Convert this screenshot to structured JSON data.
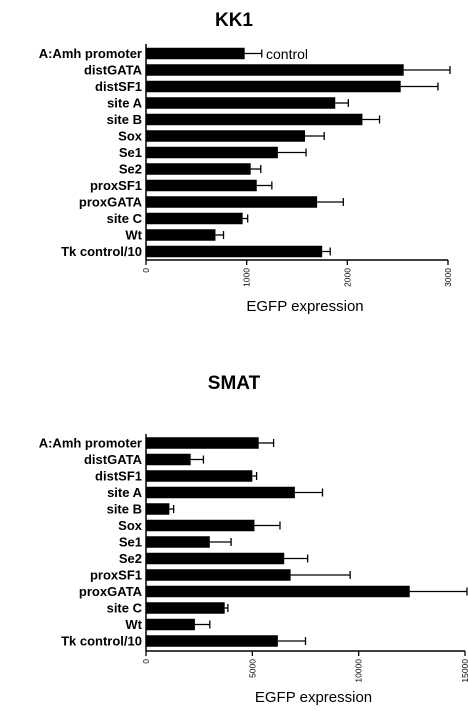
{
  "chart_data": [
    {
      "type": "bar",
      "orientation": "horizontal",
      "title": "KK1",
      "xlabel": "EGFP expression",
      "ylabel": "",
      "xlim": [
        0,
        3000
      ],
      "xticks": [
        0,
        1000,
        2000,
        3000
      ],
      "grid": false,
      "annotation": "control",
      "categories": [
        "A:Amh promoter",
        "distGATA",
        "distSF1",
        "site A",
        "site B",
        "Sox",
        "Se1",
        "Se2",
        "proxSF1",
        "proxGATA",
        "site C",
        "Wt",
        "Tk control/10"
      ],
      "values": [
        980,
        2560,
        2530,
        1880,
        2150,
        1580,
        1310,
        1040,
        1100,
        1700,
        960,
        690,
        1750
      ],
      "errors": [
        170,
        540,
        370,
        130,
        170,
        190,
        280,
        100,
        150,
        260,
        50,
        80,
        80
      ]
    },
    {
      "type": "bar",
      "orientation": "horizontal",
      "title": "SMAT",
      "xlabel": "EGFP expression",
      "ylabel": "",
      "xlim": [
        0,
        15000
      ],
      "xticks": [
        0,
        5000,
        10000,
        15000
      ],
      "grid": false,
      "categories": [
        "A:Amh promoter",
        "distGATA",
        "distSF1",
        "site A",
        "site B",
        "Sox",
        "Se1",
        "Se2",
        "proxSF1",
        "proxGATA",
        "site C",
        "Wt",
        "Tk control/10"
      ],
      "values": [
        5300,
        2100,
        5000,
        7000,
        1100,
        5100,
        3000,
        6500,
        6800,
        12400,
        3700,
        2300,
        6200
      ],
      "errors": [
        700,
        600,
        200,
        1300,
        200,
        1200,
        1000,
        1100,
        2800,
        5200,
        150,
        700,
        1300
      ]
    }
  ]
}
